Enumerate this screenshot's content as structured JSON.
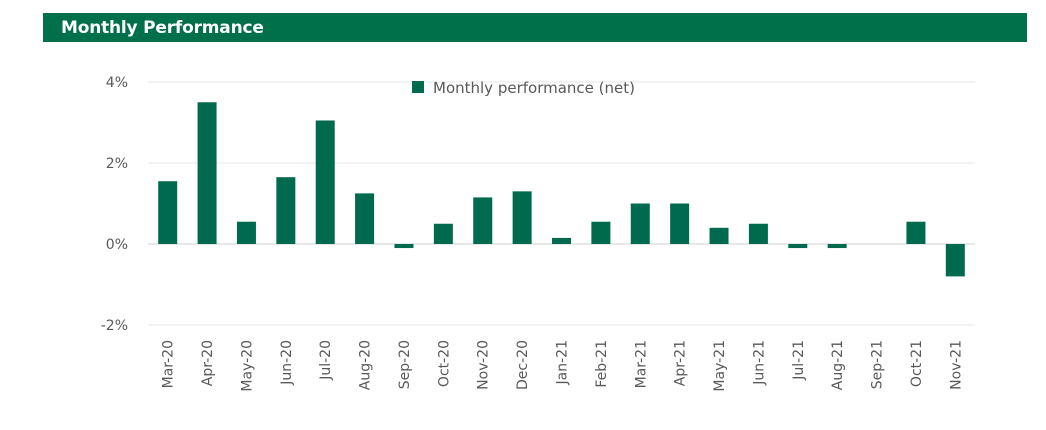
{
  "header": {
    "title": "Monthly Performance"
  },
  "colors": {
    "brand": "#00704a",
    "bar": "#006a4e",
    "axis_text": "#595959"
  },
  "chart_data": {
    "type": "bar",
    "title": "",
    "xlabel": "",
    "ylabel": "",
    "legend": {
      "placement": "top-center"
    },
    "grid": true,
    "ylim": [
      -2,
      4
    ],
    "yticks": [
      4,
      2,
      0,
      -2
    ],
    "ytick_labels": [
      "4%",
      "2%",
      "0%",
      "-2%"
    ],
    "categories": [
      "Mar-20",
      "Apr-20",
      "May-20",
      "Jun-20",
      "Jul-20",
      "Aug-20",
      "Sep-20",
      "Oct-20",
      "Nov-20",
      "Dec-20",
      "Jan-21",
      "Feb-21",
      "Mar-21",
      "Apr-21",
      "May-21",
      "Jun-21",
      "Jul-21",
      "Aug-21",
      "Sep-21",
      "Oct-21",
      "Nov-21"
    ],
    "series": [
      {
        "name": "Monthly performance (net)",
        "values": [
          1.55,
          3.5,
          0.55,
          1.65,
          3.05,
          1.25,
          -0.1,
          0.5,
          1.15,
          1.3,
          0.15,
          0.55,
          1.0,
          1.0,
          0.4,
          0.5,
          -0.1,
          -0.1,
          0.0,
          0.55,
          -0.8
        ]
      }
    ]
  }
}
